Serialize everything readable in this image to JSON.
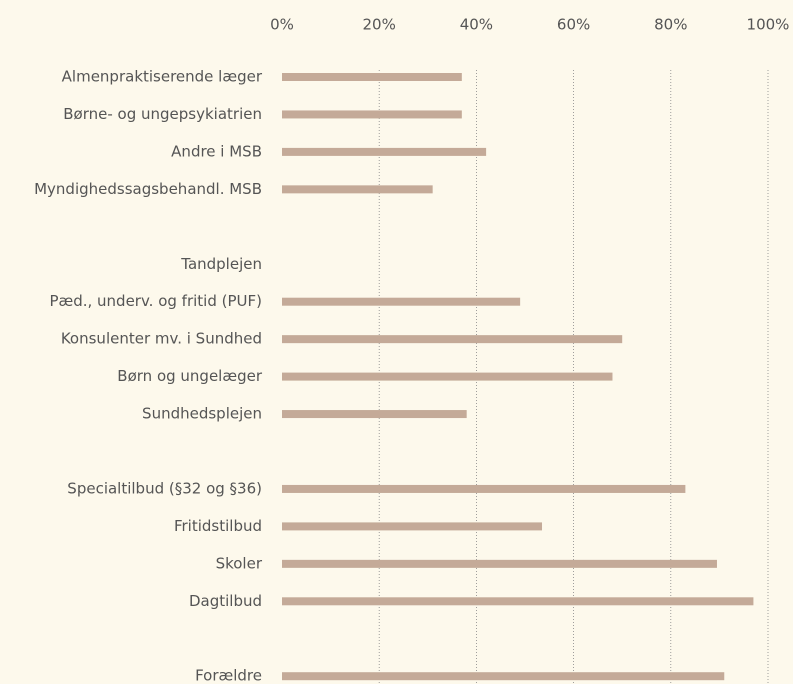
{
  "chart_data": {
    "type": "hbar",
    "categories": [
      "Almenpraktiserende læger",
      "Børne- og ungepsykiatrien",
      "Andre i MSB",
      "Myndighedssagsbehandl. MSB",
      null,
      "Tandplejen",
      "Pæd., underv. og fritid (PUF)",
      "Konsulenter mv. i Sundhed",
      "Børn og ungelæger",
      "Sundhedsplejen",
      null,
      "Specialtilbud (§32 og §36)",
      "Fritidstilbud",
      "Skoler",
      "Dagtilbud",
      null,
      "Forældre"
    ],
    "values": [
      37,
      37,
      42,
      31,
      null,
      null,
      49,
      70,
      68,
      38,
      null,
      83,
      53.5,
      89.5,
      97,
      null,
      91
    ],
    "color": "#c4aa98",
    "xlim": [
      0,
      100
    ],
    "xticks": [
      {
        "value": 0,
        "label": "0%"
      },
      {
        "value": 20,
        "label": "20%"
      },
      {
        "value": 40,
        "label": "40%"
      },
      {
        "value": 60,
        "label": "60%"
      },
      {
        "value": 80,
        "label": "80%"
      },
      {
        "value": 100,
        "label": "100%"
      }
    ],
    "grid": true
  }
}
